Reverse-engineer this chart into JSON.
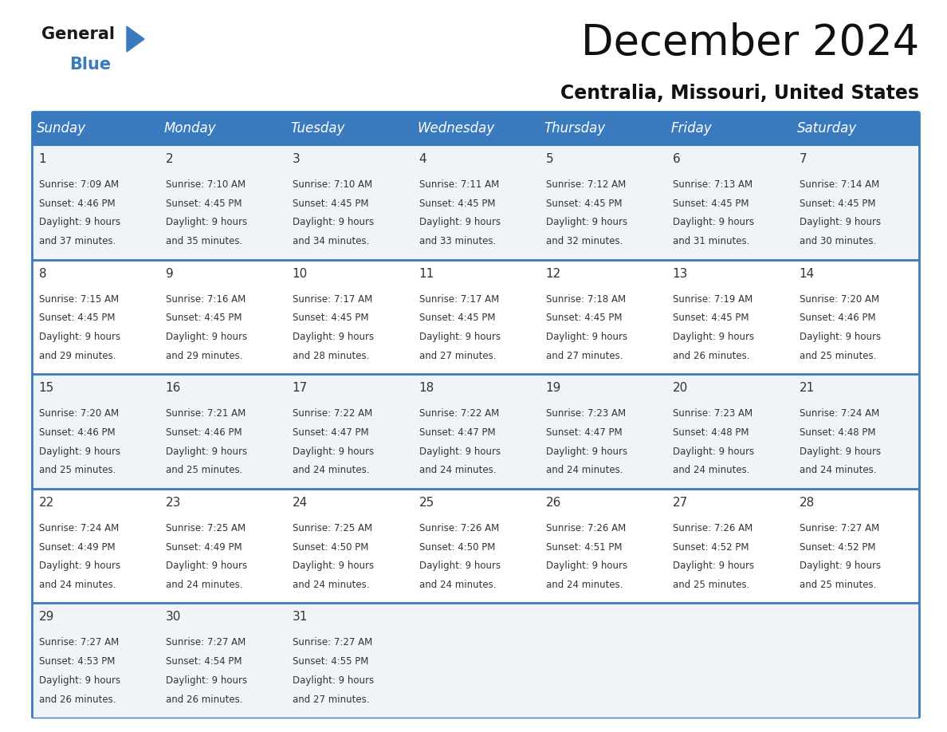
{
  "title": "December 2024",
  "subtitle": "Centralia, Missouri, United States",
  "header_color": "#3a7abf",
  "header_text_color": "#ffffff",
  "cell_bg_row0": "#f0f4f8",
  "cell_bg_row1": "#ffffff",
  "cell_bg_row2": "#f0f4f8",
  "cell_bg_row3": "#ffffff",
  "cell_bg_row4": "#f0f4f8",
  "border_color": "#3a7abf",
  "text_color": "#333333",
  "day_headers": [
    "Sunday",
    "Monday",
    "Tuesday",
    "Wednesday",
    "Thursday",
    "Friday",
    "Saturday"
  ],
  "days": [
    {
      "day": 1,
      "col": 0,
      "row": 0,
      "sunrise": "7:09 AM",
      "sunset": "4:46 PM",
      "daylight_h": "9 hours",
      "daylight_m": "37 minutes."
    },
    {
      "day": 2,
      "col": 1,
      "row": 0,
      "sunrise": "7:10 AM",
      "sunset": "4:45 PM",
      "daylight_h": "9 hours",
      "daylight_m": "35 minutes."
    },
    {
      "day": 3,
      "col": 2,
      "row": 0,
      "sunrise": "7:10 AM",
      "sunset": "4:45 PM",
      "daylight_h": "9 hours",
      "daylight_m": "34 minutes."
    },
    {
      "day": 4,
      "col": 3,
      "row": 0,
      "sunrise": "7:11 AM",
      "sunset": "4:45 PM",
      "daylight_h": "9 hours",
      "daylight_m": "33 minutes."
    },
    {
      "day": 5,
      "col": 4,
      "row": 0,
      "sunrise": "7:12 AM",
      "sunset": "4:45 PM",
      "daylight_h": "9 hours",
      "daylight_m": "32 minutes."
    },
    {
      "day": 6,
      "col": 5,
      "row": 0,
      "sunrise": "7:13 AM",
      "sunset": "4:45 PM",
      "daylight_h": "9 hours",
      "daylight_m": "31 minutes."
    },
    {
      "day": 7,
      "col": 6,
      "row": 0,
      "sunrise": "7:14 AM",
      "sunset": "4:45 PM",
      "daylight_h": "9 hours",
      "daylight_m": "30 minutes."
    },
    {
      "day": 8,
      "col": 0,
      "row": 1,
      "sunrise": "7:15 AM",
      "sunset": "4:45 PM",
      "daylight_h": "9 hours",
      "daylight_m": "29 minutes."
    },
    {
      "day": 9,
      "col": 1,
      "row": 1,
      "sunrise": "7:16 AM",
      "sunset": "4:45 PM",
      "daylight_h": "9 hours",
      "daylight_m": "29 minutes."
    },
    {
      "day": 10,
      "col": 2,
      "row": 1,
      "sunrise": "7:17 AM",
      "sunset": "4:45 PM",
      "daylight_h": "9 hours",
      "daylight_m": "28 minutes."
    },
    {
      "day": 11,
      "col": 3,
      "row": 1,
      "sunrise": "7:17 AM",
      "sunset": "4:45 PM",
      "daylight_h": "9 hours",
      "daylight_m": "27 minutes."
    },
    {
      "day": 12,
      "col": 4,
      "row": 1,
      "sunrise": "7:18 AM",
      "sunset": "4:45 PM",
      "daylight_h": "9 hours",
      "daylight_m": "27 minutes."
    },
    {
      "day": 13,
      "col": 5,
      "row": 1,
      "sunrise": "7:19 AM",
      "sunset": "4:45 PM",
      "daylight_h": "9 hours",
      "daylight_m": "26 minutes."
    },
    {
      "day": 14,
      "col": 6,
      "row": 1,
      "sunrise": "7:20 AM",
      "sunset": "4:46 PM",
      "daylight_h": "9 hours",
      "daylight_m": "25 minutes."
    },
    {
      "day": 15,
      "col": 0,
      "row": 2,
      "sunrise": "7:20 AM",
      "sunset": "4:46 PM",
      "daylight_h": "9 hours",
      "daylight_m": "25 minutes."
    },
    {
      "day": 16,
      "col": 1,
      "row": 2,
      "sunrise": "7:21 AM",
      "sunset": "4:46 PM",
      "daylight_h": "9 hours",
      "daylight_m": "25 minutes."
    },
    {
      "day": 17,
      "col": 2,
      "row": 2,
      "sunrise": "7:22 AM",
      "sunset": "4:47 PM",
      "daylight_h": "9 hours",
      "daylight_m": "24 minutes."
    },
    {
      "day": 18,
      "col": 3,
      "row": 2,
      "sunrise": "7:22 AM",
      "sunset": "4:47 PM",
      "daylight_h": "9 hours",
      "daylight_m": "24 minutes."
    },
    {
      "day": 19,
      "col": 4,
      "row": 2,
      "sunrise": "7:23 AM",
      "sunset": "4:47 PM",
      "daylight_h": "9 hours",
      "daylight_m": "24 minutes."
    },
    {
      "day": 20,
      "col": 5,
      "row": 2,
      "sunrise": "7:23 AM",
      "sunset": "4:48 PM",
      "daylight_h": "9 hours",
      "daylight_m": "24 minutes."
    },
    {
      "day": 21,
      "col": 6,
      "row": 2,
      "sunrise": "7:24 AM",
      "sunset": "4:48 PM",
      "daylight_h": "9 hours",
      "daylight_m": "24 minutes."
    },
    {
      "day": 22,
      "col": 0,
      "row": 3,
      "sunrise": "7:24 AM",
      "sunset": "4:49 PM",
      "daylight_h": "9 hours",
      "daylight_m": "24 minutes."
    },
    {
      "day": 23,
      "col": 1,
      "row": 3,
      "sunrise": "7:25 AM",
      "sunset": "4:49 PM",
      "daylight_h": "9 hours",
      "daylight_m": "24 minutes."
    },
    {
      "day": 24,
      "col": 2,
      "row": 3,
      "sunrise": "7:25 AM",
      "sunset": "4:50 PM",
      "daylight_h": "9 hours",
      "daylight_m": "24 minutes."
    },
    {
      "day": 25,
      "col": 3,
      "row": 3,
      "sunrise": "7:26 AM",
      "sunset": "4:50 PM",
      "daylight_h": "9 hours",
      "daylight_m": "24 minutes."
    },
    {
      "day": 26,
      "col": 4,
      "row": 3,
      "sunrise": "7:26 AM",
      "sunset": "4:51 PM",
      "daylight_h": "9 hours",
      "daylight_m": "24 minutes."
    },
    {
      "day": 27,
      "col": 5,
      "row": 3,
      "sunrise": "7:26 AM",
      "sunset": "4:52 PM",
      "daylight_h": "9 hours",
      "daylight_m": "25 minutes."
    },
    {
      "day": 28,
      "col": 6,
      "row": 3,
      "sunrise": "7:27 AM",
      "sunset": "4:52 PM",
      "daylight_h": "9 hours",
      "daylight_m": "25 minutes."
    },
    {
      "day": 29,
      "col": 0,
      "row": 4,
      "sunrise": "7:27 AM",
      "sunset": "4:53 PM",
      "daylight_h": "9 hours",
      "daylight_m": "26 minutes."
    },
    {
      "day": 30,
      "col": 1,
      "row": 4,
      "sunrise": "7:27 AM",
      "sunset": "4:54 PM",
      "daylight_h": "9 hours",
      "daylight_m": "26 minutes."
    },
    {
      "day": 31,
      "col": 2,
      "row": 4,
      "sunrise": "7:27 AM",
      "sunset": "4:55 PM",
      "daylight_h": "9 hours",
      "daylight_m": "27 minutes."
    }
  ],
  "n_rows": 5,
  "n_cols": 7,
  "logo_general_color": "#1a1a1a",
  "logo_blue_color": "#3a7abf",
  "logo_triangle_color": "#3a7abf",
  "title_fontsize": 38,
  "subtitle_fontsize": 17,
  "header_fontsize": 12,
  "day_num_fontsize": 11,
  "cell_text_fontsize": 8.5
}
